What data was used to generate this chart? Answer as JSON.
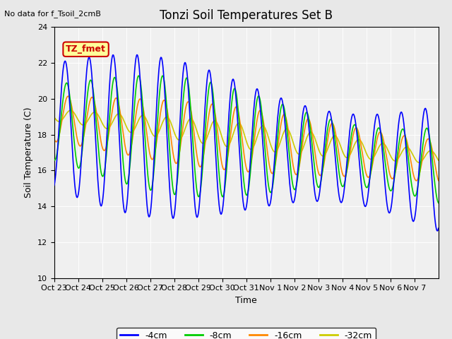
{
  "title": "Tonzi Soil Temperatures Set B",
  "xlabel": "Time",
  "ylabel": "Soil Temperature (C)",
  "no_data_text": "No data for f_Tsoil_2cmB",
  "tz_fmet_label": "TZ_fmet",
  "ylim": [
    10,
    24
  ],
  "yticks": [
    10,
    12,
    14,
    16,
    18,
    20,
    22,
    24
  ],
  "x_tick_labels": [
    "Oct 23",
    "Oct 24",
    "Oct 25",
    "Oct 26",
    "Oct 27",
    "Oct 28",
    "Oct 29",
    "Oct 30",
    "Oct 31",
    "Nov 1",
    "Nov 2",
    "Nov 3",
    "Nov 4",
    "Nov 5",
    "Nov 6",
    "Nov 7"
  ],
  "bg_color": "#e8e8e8",
  "plot_bg_color": "#f0f0f0",
  "line_colors": [
    "#0000ff",
    "#00cc00",
    "#ff8800",
    "#cccc00"
  ],
  "legend_labels": [
    "-4cm",
    "-8cm",
    "-16cm",
    "-32cm"
  ]
}
